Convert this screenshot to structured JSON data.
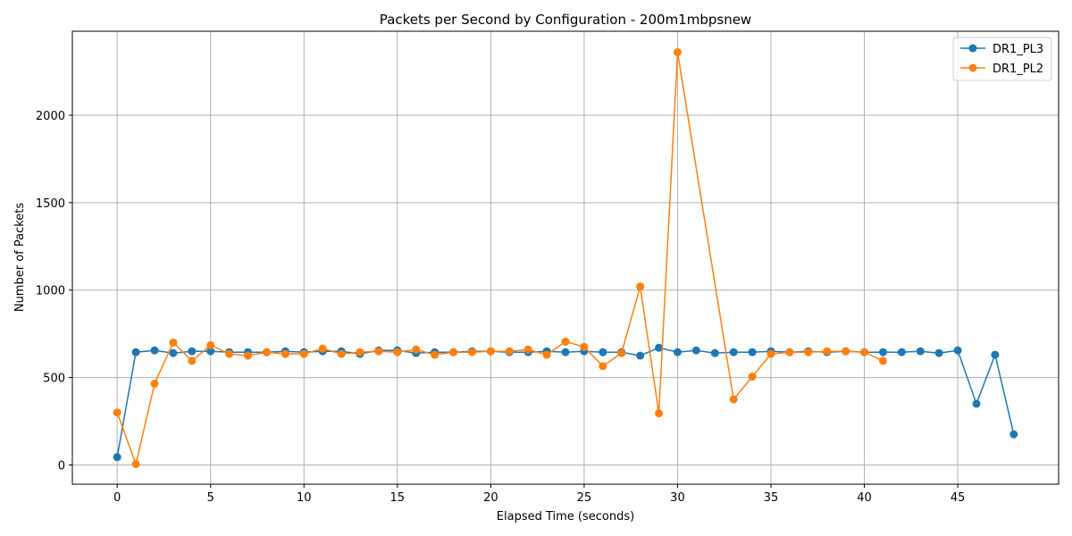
{
  "chart_data": {
    "type": "line",
    "title": "Packets per Second by Configuration - 200m1mbpsnew",
    "xlabel": "Elapsed Time (seconds)",
    "ylabel": "Number of Packets",
    "xlim": [
      -2.4,
      50.4
    ],
    "ylim": [
      -110,
      2480
    ],
    "xticks": [
      0,
      5,
      10,
      15,
      20,
      25,
      30,
      35,
      40,
      45
    ],
    "yticks": [
      0,
      500,
      1000,
      1500,
      2000
    ],
    "grid": true,
    "legend_position": "top-right",
    "series": [
      {
        "name": "DR1_PL3",
        "color": "#1f77b4",
        "x": [
          0,
          1,
          2,
          3,
          4,
          5,
          6,
          7,
          8,
          9,
          10,
          11,
          12,
          13,
          14,
          15,
          16,
          17,
          18,
          19,
          20,
          21,
          22,
          23,
          24,
          25,
          26,
          27,
          28,
          29,
          30,
          31,
          32,
          33,
          34,
          35,
          36,
          37,
          38,
          39,
          40,
          41,
          42,
          43,
          44,
          45,
          46,
          47,
          48
        ],
        "values": [
          45,
          645,
          655,
          640,
          650,
          650,
          645,
          645,
          645,
          650,
          645,
          650,
          650,
          635,
          655,
          655,
          640,
          645,
          645,
          650,
          650,
          645,
          645,
          650,
          645,
          650,
          645,
          645,
          625,
          670,
          645,
          655,
          640,
          645,
          645,
          650,
          645,
          650,
          645,
          650,
          645,
          645,
          645,
          650,
          640,
          655,
          350,
          630,
          175
        ]
      },
      {
        "name": "DR1_PL2",
        "color": "#ff7f0e",
        "x": [
          0,
          1,
          2,
          3,
          4,
          5,
          6,
          7,
          8,
          9,
          10,
          11,
          12,
          13,
          14,
          15,
          16,
          17,
          18,
          19,
          20,
          21,
          22,
          23,
          24,
          25,
          26,
          27,
          28,
          29,
          30,
          31,
          32,
          33,
          34,
          35,
          36,
          37,
          38,
          39,
          40,
          41
        ],
        "values": [
          300,
          5,
          465,
          700,
          595,
          685,
          635,
          625,
          645,
          635,
          635,
          665,
          635,
          645,
          650,
          645,
          660,
          630,
          645,
          645,
          650,
          650,
          660,
          630,
          705,
          675,
          565,
          640,
          1020,
          295,
          2360,
          null,
          null,
          375,
          505,
          635,
          645,
          645,
          650,
          650,
          645,
          595
        ]
      }
    ]
  }
}
